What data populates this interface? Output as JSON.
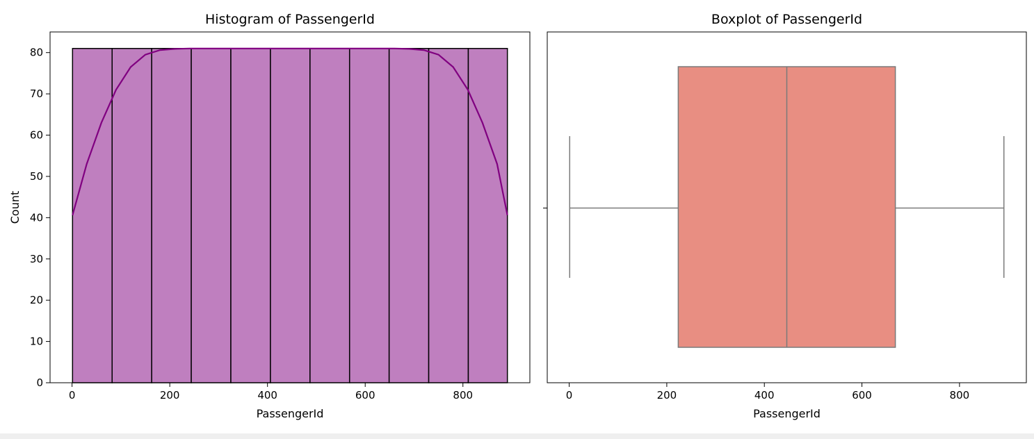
{
  "chart_data": [
    {
      "type": "bar",
      "title": "Histogram of PassengerId",
      "xlabel": "PassengerId",
      "ylabel": "Count",
      "xlim": [
        -45,
        937
      ],
      "ylim": [
        0,
        85
      ],
      "xticks": [
        0,
        200,
        400,
        600,
        800
      ],
      "yticks": [
        0,
        10,
        20,
        30,
        40,
        50,
        60,
        70,
        80
      ],
      "bin_edges": [
        1,
        82,
        163,
        244,
        325,
        406,
        487,
        568,
        649,
        730,
        811,
        891
      ],
      "values": [
        81,
        81,
        81,
        81,
        81,
        81,
        81,
        81,
        81,
        81,
        81
      ],
      "bar_color": "#bf7fbf",
      "edge_color": "#000000",
      "kde": {
        "x": [
          1,
          30,
          60,
          90,
          120,
          150,
          180,
          210,
          240,
          300,
          400,
          500,
          600,
          660,
          690,
          720,
          750,
          780,
          810,
          840,
          870,
          891
        ],
        "y": [
          40.6,
          53,
          63,
          71,
          76.5,
          79.5,
          80.6,
          80.9,
          81,
          81,
          81,
          81,
          81,
          81,
          80.9,
          80.6,
          79.5,
          76.5,
          71,
          63,
          53,
          40.6
        ],
        "color": "#800080"
      },
      "grid": false
    },
    {
      "type": "box",
      "title": "Boxplot of PassengerId",
      "xlabel": "PassengerId",
      "xlim": [
        -45,
        937
      ],
      "xticks": [
        0,
        200,
        400,
        600,
        800
      ],
      "whisker_low": 1,
      "q1": 223.5,
      "median": 446,
      "q3": 668.5,
      "whisker_high": 891,
      "box_color": "#e88e82",
      "line_color": "#7a7a7a",
      "grid": false
    }
  ]
}
